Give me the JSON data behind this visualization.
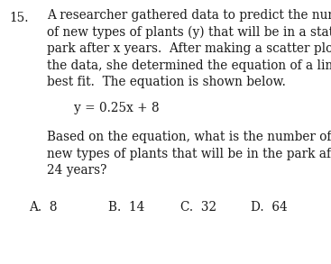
{
  "background_color": "#ffffff",
  "question_number": "15.",
  "line1": "A researcher gathered data to predict the number",
  "line2": "of new types of plants (y) that will be in a state",
  "line3": "park after x years.  After making a scatter plot of",
  "line4": "the data, she determined the equation of a line of",
  "line5": "best fit.  The equation is shown below.",
  "equation": "y = 0.25x + 8",
  "line6": "Based on the equation, what is the number of",
  "line7": "new types of plants that will be in the park after",
  "line8": "24 years?",
  "choiceA": "A.  8",
  "choiceB": "B.  14",
  "choiceC": "C.  32",
  "choiceD": "D.  64",
  "font_family": "DejaVu Serif",
  "text_color": "#1a1a1a",
  "fontsize": 9.8,
  "fig_width": 3.67,
  "fig_height": 2.93,
  "dpi": 100
}
